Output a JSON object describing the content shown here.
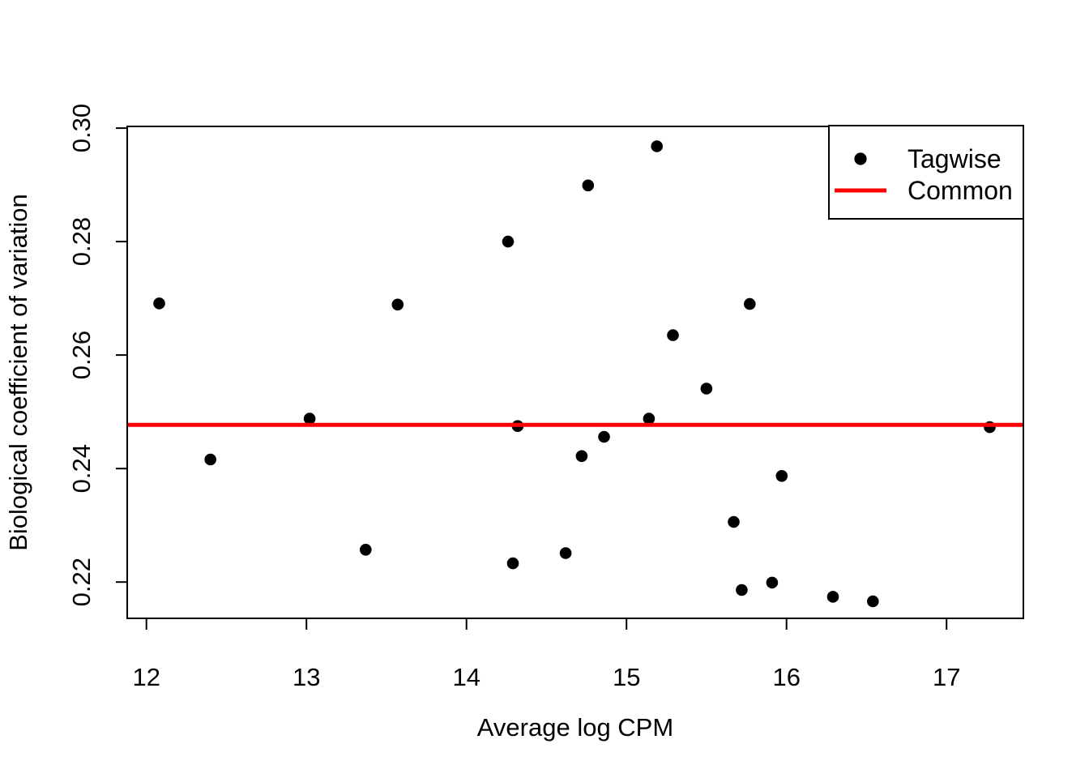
{
  "figure": {
    "background": "#ffffff",
    "foreground": "#000000"
  },
  "chart_data": {
    "type": "scatter",
    "title": "",
    "xlabel": "Average log CPM",
    "ylabel": "Biological coefficient of variation",
    "xlim": [
      11.88,
      17.48
    ],
    "ylim": [
      0.2136,
      0.3003
    ],
    "x_ticks": [
      12,
      13,
      14,
      15,
      16,
      17
    ],
    "y_ticks": [
      0.22,
      0.24,
      0.26,
      0.28,
      0.3
    ],
    "grid": false,
    "point_color": "#000000",
    "line_color": "#ff0000",
    "legend": {
      "position": "top-right",
      "entries": [
        {
          "label": "Tagwise",
          "type": "point",
          "color": "#000000"
        },
        {
          "label": "Common",
          "type": "line",
          "color": "#ff0000"
        }
      ]
    },
    "series": [
      {
        "name": "Tagwise",
        "type": "scatter",
        "color": "#000000",
        "points": [
          [
            12.08,
            0.2691
          ],
          [
            12.4,
            0.2416
          ],
          [
            13.02,
            0.2488
          ],
          [
            13.37,
            0.2257
          ],
          [
            13.57,
            0.2689
          ],
          [
            14.26,
            0.28
          ],
          [
            14.29,
            0.2233
          ],
          [
            14.32,
            0.2475
          ],
          [
            14.62,
            0.2251
          ],
          [
            14.72,
            0.2422
          ],
          [
            14.76,
            0.2899
          ],
          [
            14.86,
            0.2456
          ],
          [
            15.14,
            0.2488
          ],
          [
            15.19,
            0.2968
          ],
          [
            15.29,
            0.2635
          ],
          [
            15.5,
            0.2541
          ],
          [
            15.67,
            0.2306
          ],
          [
            15.72,
            0.2186
          ],
          [
            15.77,
            0.269
          ],
          [
            15.91,
            0.2199
          ],
          [
            15.97,
            0.2387
          ],
          [
            16.29,
            0.2174
          ],
          [
            16.54,
            0.2166
          ],
          [
            17.27,
            0.2473
          ]
        ]
      },
      {
        "name": "Common",
        "type": "hline",
        "color": "#ff0000",
        "y": 0.2477
      }
    ]
  }
}
